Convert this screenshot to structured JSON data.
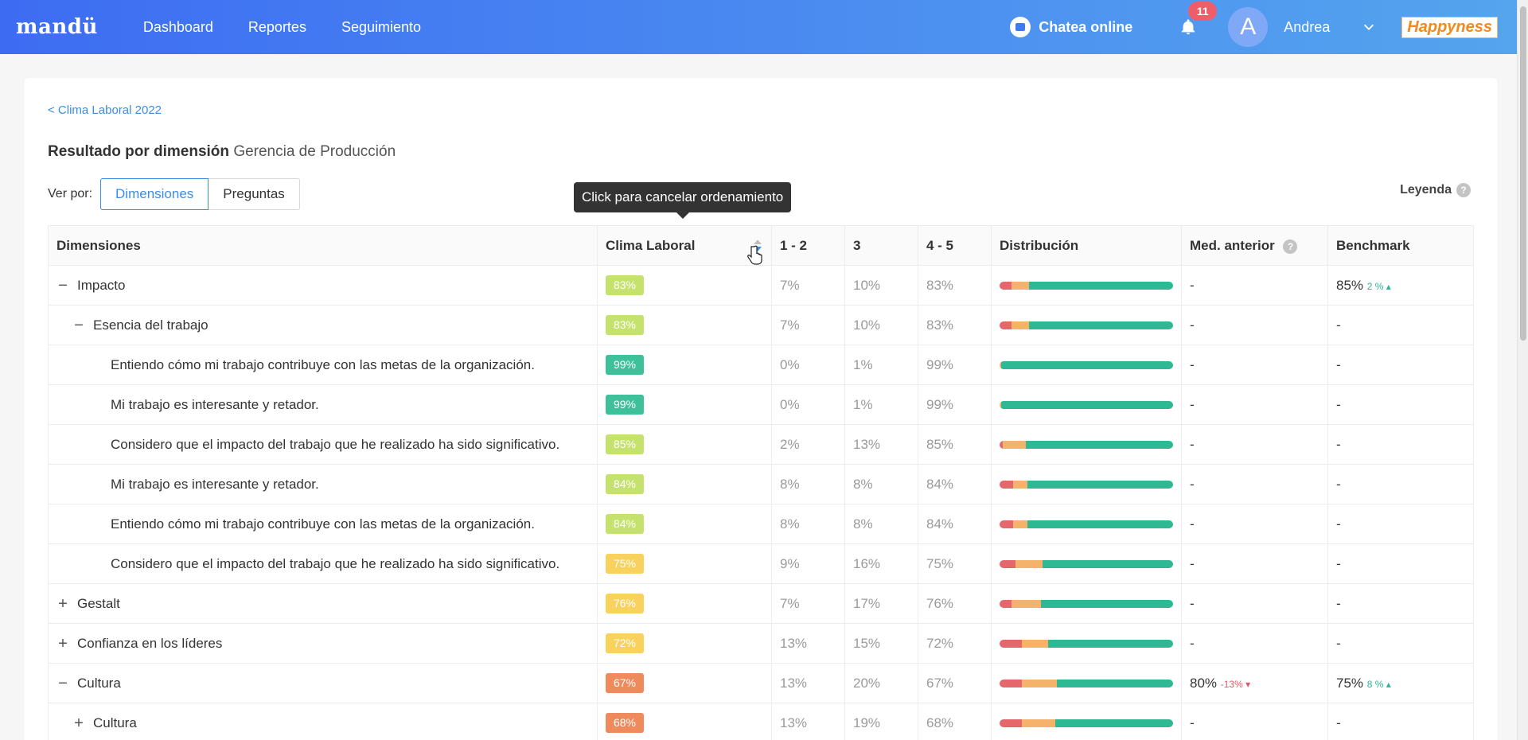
{
  "topbar": {
    "logo": "mandü",
    "nav": [
      "Dashboard",
      "Reportes",
      "Seguimiento"
    ],
    "chat_label": "Chatea online",
    "notifications_count": "11",
    "avatar_letter": "A",
    "user_name": "Andrea",
    "brand": "Happyness"
  },
  "page": {
    "back_link": "< Clima Laboral 2022",
    "heading_bold": "Resultado por dimensión",
    "heading_sub": "Gerencia de Producción",
    "view_by_label": "Ver por:",
    "view_options": [
      "Dimensiones",
      "Preguntas"
    ],
    "active_view": "Dimensiones",
    "legend_label": "Leyenda",
    "tooltip": "Click para cancelar ordenamiento"
  },
  "table": {
    "headers": [
      "Dimensiones",
      "Clima Laboral",
      "1 - 2",
      "3",
      "4 - 5",
      "Distribución",
      "Med. anterior",
      "Benchmark"
    ],
    "rows": [
      {
        "level": 0,
        "expander": "−",
        "name": "Impacto",
        "score": "83%",
        "color": "#c5e26e",
        "low": "7%",
        "mid": "10%",
        "high": "83%",
        "dist": [
          7,
          10,
          83
        ],
        "prev": "-",
        "prev_delta": "",
        "bench": "85%",
        "bench_delta": "2 % ▴"
      },
      {
        "level": 1,
        "expander": "−",
        "name": "Esencia del trabajo",
        "score": "83%",
        "color": "#c5e26e",
        "low": "7%",
        "mid": "10%",
        "high": "83%",
        "dist": [
          7,
          10,
          83
        ],
        "prev": "-",
        "prev_delta": "",
        "bench": "-",
        "bench_delta": ""
      },
      {
        "level": 2,
        "expander": "",
        "name": "Entiendo cómo mi trabajo contribuye con las metas de la organización.",
        "score": "99%",
        "color": "#3ec09b",
        "low": "0%",
        "mid": "1%",
        "high": "99%",
        "dist": [
          0,
          1,
          99
        ],
        "prev": "-",
        "prev_delta": "",
        "bench": "-",
        "bench_delta": ""
      },
      {
        "level": 2,
        "expander": "",
        "name": "Mi trabajo es interesante y retador.",
        "score": "99%",
        "color": "#3ec09b",
        "low": "0%",
        "mid": "1%",
        "high": "99%",
        "dist": [
          0,
          1,
          99
        ],
        "prev": "-",
        "prev_delta": "",
        "bench": "-",
        "bench_delta": ""
      },
      {
        "level": 2,
        "expander": "",
        "name": "Considero que el impacto del trabajo que he realizado ha sido significativo.",
        "score": "85%",
        "color": "#c5e26e",
        "low": "2%",
        "mid": "13%",
        "high": "85%",
        "dist": [
          2,
          13,
          85
        ],
        "prev": "-",
        "prev_delta": "",
        "bench": "-",
        "bench_delta": ""
      },
      {
        "level": 2,
        "expander": "",
        "name": "Mi trabajo es interesante y retador.",
        "score": "84%",
        "color": "#c5e26e",
        "low": "8%",
        "mid": "8%",
        "high": "84%",
        "dist": [
          8,
          8,
          84
        ],
        "prev": "-",
        "prev_delta": "",
        "bench": "-",
        "bench_delta": ""
      },
      {
        "level": 2,
        "expander": "",
        "name": "Entiendo cómo mi trabajo contribuye con las metas de la organización.",
        "score": "84%",
        "color": "#c5e26e",
        "low": "8%",
        "mid": "8%",
        "high": "84%",
        "dist": [
          8,
          8,
          84
        ],
        "prev": "-",
        "prev_delta": "",
        "bench": "-",
        "bench_delta": ""
      },
      {
        "level": 2,
        "expander": "",
        "name": "Considero que el impacto del trabajo que he realizado ha sido significativo.",
        "score": "75%",
        "color": "#f8d25c",
        "low": "9%",
        "mid": "16%",
        "high": "75%",
        "dist": [
          9,
          16,
          75
        ],
        "prev": "-",
        "prev_delta": "",
        "bench": "-",
        "bench_delta": ""
      },
      {
        "level": 0,
        "expander": "+",
        "name": "Gestalt",
        "score": "76%",
        "color": "#f8d25c",
        "low": "7%",
        "mid": "17%",
        "high": "76%",
        "dist": [
          7,
          17,
          76
        ],
        "prev": "-",
        "prev_delta": "",
        "bench": "-",
        "bench_delta": ""
      },
      {
        "level": 0,
        "expander": "+",
        "name": "Confianza en los líderes",
        "score": "72%",
        "color": "#f8d25c",
        "low": "13%",
        "mid": "15%",
        "high": "72%",
        "dist": [
          13,
          15,
          72
        ],
        "prev": "-",
        "prev_delta": "",
        "bench": "-",
        "bench_delta": ""
      },
      {
        "level": 0,
        "expander": "−",
        "name": "Cultura",
        "score": "67%",
        "color": "#ef8a5c",
        "low": "13%",
        "mid": "20%",
        "high": "67%",
        "dist": [
          13,
          20,
          67
        ],
        "prev": "80%",
        "prev_delta": "-13% ▾",
        "bench": "75%",
        "bench_delta": "8 % ▴"
      },
      {
        "level": 1,
        "expander": "+",
        "name": "Cultura",
        "score": "68%",
        "color": "#ef8a5c",
        "low": "13%",
        "mid": "19%",
        "high": "68%",
        "dist": [
          13,
          19,
          68
        ],
        "prev": "-",
        "prev_delta": "",
        "bench": "-",
        "bench_delta": ""
      }
    ]
  },
  "colors": {
    "dist_low": "#e4676b",
    "dist_mid": "#f5b26b",
    "dist_high": "#2fb894"
  }
}
